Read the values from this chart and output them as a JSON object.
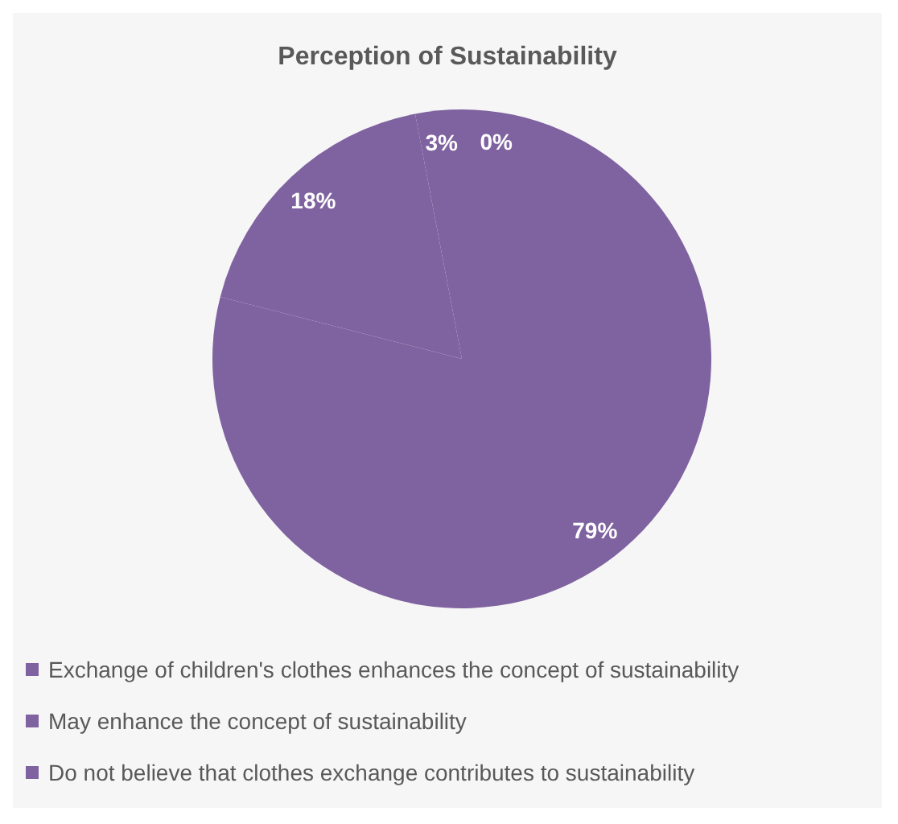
{
  "chart_data": {
    "type": "pie",
    "title": "Perception of Sustainability",
    "categories": [
      "Exchange of children's clothes enhances the concept of sustainability",
      "May enhance the concept of sustainability",
      "Do not believe that clothes exchange contributes to sustainability",
      null
    ],
    "values": [
      79,
      18,
      3,
      0
    ],
    "colors": [
      "#7f62a0",
      "#7f62a0",
      "#7f62a0",
      "#7f62a0"
    ],
    "value_labels": [
      "79%",
      "18%",
      "3%",
      "0%"
    ],
    "legend": "bottom"
  }
}
